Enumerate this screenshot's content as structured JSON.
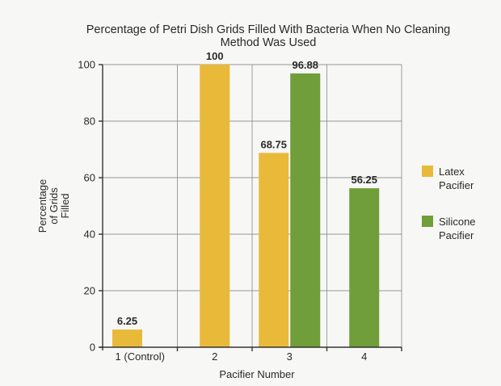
{
  "chart_data": {
    "type": "bar",
    "title": [
      "Percentage of Petri Dish Grids Filled With Bacteria When No Cleaning",
      "Method Was Used"
    ],
    "xlabel": "Pacifier Number",
    "ylabel": [
      "Percentage",
      "of Grids",
      "Filled"
    ],
    "categories": [
      "1 (Control)",
      "2",
      "3",
      "4"
    ],
    "ylim": [
      0,
      100
    ],
    "yticks": [
      0,
      20,
      40,
      60,
      80,
      100
    ],
    "grid": true,
    "legend_position": "right",
    "series": [
      {
        "name": [
          "Latex",
          "Pacifier"
        ],
        "color": "#e9b93a",
        "values": [
          6.25,
          100,
          68.75,
          null
        ],
        "labels": [
          "6.25",
          "100",
          "68.75",
          ""
        ]
      },
      {
        "name": [
          "Silicone",
          "Pacifier"
        ],
        "color": "#6f9e3a",
        "values": [
          null,
          null,
          96.88,
          56.25
        ],
        "labels": [
          "",
          "",
          "96.88",
          "56.25"
        ]
      }
    ]
  }
}
